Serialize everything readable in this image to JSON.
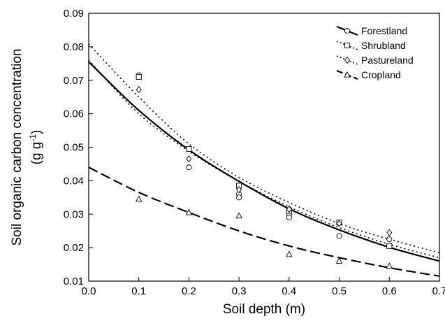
{
  "chart_data": {
    "type": "scatter",
    "xlabel": "Soil depth (m)",
    "ylabel_line1": "Soil organic carbon concentration",
    "ylabel_unit_base": "(g g",
    "ylabel_unit_exp": "-1",
    "ylabel_unit_close": ")",
    "xlim": [
      0.0,
      0.7
    ],
    "ylim": [
      0.01,
      0.09
    ],
    "xticks": [
      "0.0",
      "0.1",
      "0.2",
      "0.3",
      "0.4",
      "0.5",
      "0.6",
      "0.7"
    ],
    "yticks": [
      "0.01",
      "0.02",
      "0.03",
      "0.04",
      "0.05",
      "0.06",
      "0.07",
      "0.08",
      "0.09"
    ],
    "grid": false,
    "legend_position": "top-right",
    "series": [
      {
        "name": "Forestland",
        "marker": "circle",
        "line_style": "solid",
        "points": [
          [
            0.1,
            0.0715
          ],
          [
            0.2,
            0.044
          ],
          [
            0.3,
            0.036
          ],
          [
            0.3,
            0.035
          ],
          [
            0.4,
            0.03
          ],
          [
            0.4,
            0.029
          ],
          [
            0.5,
            0.0235
          ],
          [
            0.6,
            0.0225
          ]
        ],
        "curve": [
          [
            0.0,
            0.0755
          ],
          [
            0.1,
            0.061
          ],
          [
            0.2,
            0.0492
          ],
          [
            0.3,
            0.0398
          ],
          [
            0.4,
            0.0316
          ],
          [
            0.5,
            0.0253
          ],
          [
            0.6,
            0.0201
          ],
          [
            0.7,
            0.016
          ]
        ]
      },
      {
        "name": "Shrubland",
        "marker": "square",
        "line_style": "dotted",
        "points": [
          [
            0.1,
            0.071
          ],
          [
            0.2,
            0.0495
          ],
          [
            0.3,
            0.0385
          ],
          [
            0.4,
            0.031
          ],
          [
            0.5,
            0.0275
          ],
          [
            0.6,
            0.0205
          ]
        ],
        "curve": [
          [
            0.0,
            0.076
          ],
          [
            0.1,
            0.06
          ],
          [
            0.2,
            0.0488
          ],
          [
            0.3,
            0.0398
          ],
          [
            0.4,
            0.0322
          ],
          [
            0.5,
            0.026
          ],
          [
            0.6,
            0.021
          ],
          [
            0.7,
            0.017
          ]
        ]
      },
      {
        "name": "Pastureland",
        "marker": "diamond",
        "line_style": "dotted",
        "points": [
          [
            0.1,
            0.0672
          ],
          [
            0.2,
            0.0465
          ],
          [
            0.3,
            0.0373
          ],
          [
            0.4,
            0.0315
          ],
          [
            0.5,
            0.0272
          ],
          [
            0.6,
            0.0245
          ]
        ],
        "curve": [
          [
            0.0,
            0.0808
          ],
          [
            0.1,
            0.065
          ],
          [
            0.2,
            0.051
          ],
          [
            0.3,
            0.041
          ],
          [
            0.4,
            0.0335
          ],
          [
            0.5,
            0.0272
          ],
          [
            0.6,
            0.0225
          ],
          [
            0.7,
            0.0185
          ]
        ]
      },
      {
        "name": "Cropland",
        "marker": "triangle",
        "line_style": "dashed",
        "points": [
          [
            0.1,
            0.0345
          ],
          [
            0.2,
            0.0305
          ],
          [
            0.3,
            0.0295
          ],
          [
            0.4,
            0.018
          ],
          [
            0.5,
            0.016
          ],
          [
            0.6,
            0.0145
          ]
        ],
        "curve": [
          [
            0.0,
            0.044
          ],
          [
            0.1,
            0.0365
          ],
          [
            0.2,
            0.0305
          ],
          [
            0.3,
            0.025
          ],
          [
            0.4,
            0.0205
          ],
          [
            0.5,
            0.017
          ],
          [
            0.6,
            0.014
          ],
          [
            0.7,
            0.0115
          ]
        ]
      }
    ]
  }
}
